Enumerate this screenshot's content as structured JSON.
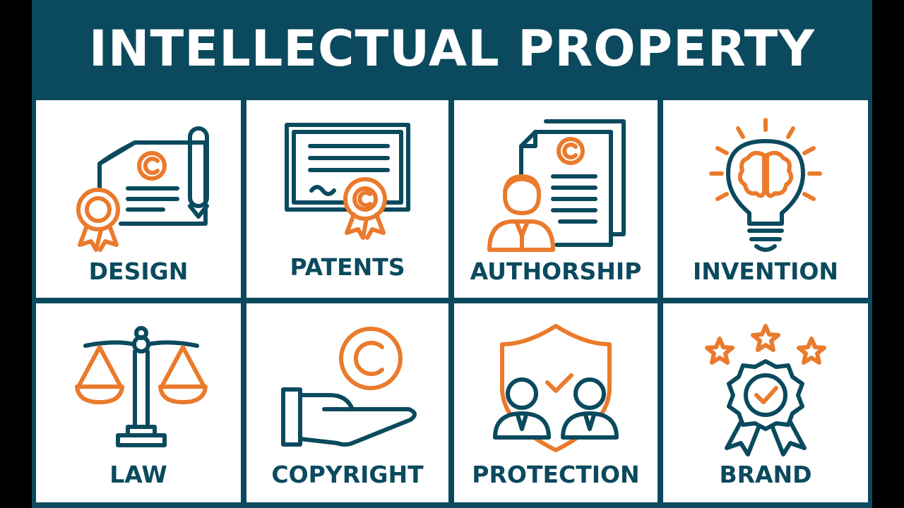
{
  "title": "INTELLECTUAL PROPERTY",
  "colors": {
    "navy": "#0b4a5e",
    "orange": "#ea7a2c",
    "background": "#ffffff"
  },
  "tiles": [
    {
      "label": "DESIGN",
      "icon": "certificate-scroll-icon"
    },
    {
      "label": "PATENTS",
      "icon": "patent-certificate-icon"
    },
    {
      "label": "AUTHORSHIP",
      "icon": "author-document-icon"
    },
    {
      "label": "INVENTION",
      "icon": "lightbulb-brain-icon"
    },
    {
      "label": "LAW",
      "icon": "scales-icon"
    },
    {
      "label": "COPYRIGHT",
      "icon": "hand-copyright-icon"
    },
    {
      "label": "PROTECTION",
      "icon": "shield-people-icon"
    },
    {
      "label": "BRAND",
      "icon": "award-badge-icon"
    }
  ]
}
